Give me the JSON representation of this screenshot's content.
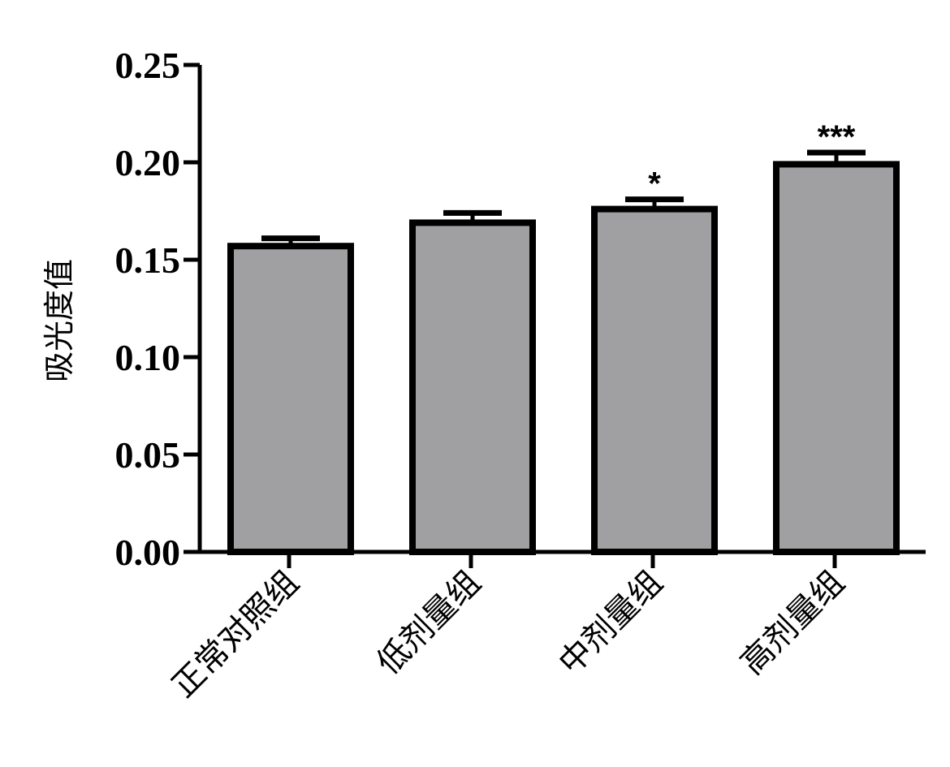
{
  "chart_data": {
    "type": "bar",
    "ylabel": "吸光度值",
    "xlabel": "",
    "categories": [
      "正常对照组",
      "低剂量组",
      "中剂量组",
      "高剂量组"
    ],
    "values": [
      0.157,
      0.169,
      0.176,
      0.199
    ],
    "errors": [
      0.004,
      0.005,
      0.005,
      0.006
    ],
    "annotations": [
      "",
      "",
      "*",
      "***"
    ],
    "ylim": [
      0,
      0.25
    ],
    "yticks": [
      "0.00",
      "0.05",
      "0.10",
      "0.15",
      "0.20",
      "0.25"
    ],
    "bar_color": "#a0a0a2",
    "edge_color": "#000000",
    "grid": false,
    "legend": "none"
  }
}
